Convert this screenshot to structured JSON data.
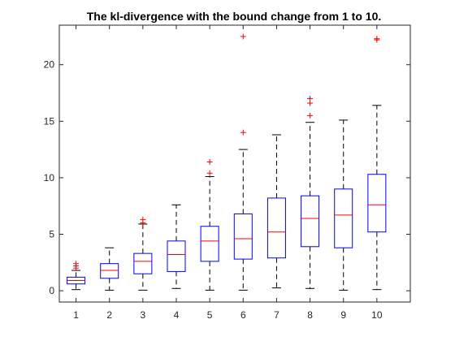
{
  "chart_data": {
    "type": "boxplot",
    "title": "The kl-divergence with the bound change from 1 to 10.",
    "xlabel": "",
    "ylabel": "",
    "categories": [
      "1",
      "2",
      "3",
      "4",
      "5",
      "6",
      "7",
      "8",
      "9",
      "10"
    ],
    "ylim": [
      -1,
      23.5
    ],
    "yticks": [
      0,
      5,
      10,
      15,
      20
    ],
    "ytick_labels": [
      "0",
      "5",
      "10",
      "15",
      "20"
    ],
    "grid": false,
    "colors": {
      "box": "#0000ff",
      "median": "#ff0000",
      "whisker": "#000000",
      "outlier": "#ff0000",
      "axes": "#262626"
    },
    "boxes": [
      {
        "category": "1",
        "min": 0.1,
        "q1": 0.6,
        "median": 0.9,
        "q3": 1.2,
        "max": 1.8,
        "outliers": [
          2.0,
          2.2,
          2.4
        ]
      },
      {
        "category": "2",
        "min": 0.05,
        "q1": 1.1,
        "median": 1.8,
        "q3": 2.4,
        "max": 3.8,
        "outliers": []
      },
      {
        "category": "3",
        "min": 0.05,
        "q1": 1.5,
        "median": 2.6,
        "q3": 3.3,
        "max": 5.9,
        "outliers": [
          6.0,
          6.3
        ]
      },
      {
        "category": "4",
        "min": 0.2,
        "q1": 1.7,
        "median": 3.2,
        "q3": 4.4,
        "max": 7.6,
        "outliers": []
      },
      {
        "category": "5",
        "min": 0.05,
        "q1": 2.6,
        "median": 4.4,
        "q3": 5.7,
        "max": 10.1,
        "outliers": [
          10.4,
          11.4
        ]
      },
      {
        "category": "6",
        "min": 0.05,
        "q1": 2.8,
        "median": 4.6,
        "q3": 6.8,
        "max": 12.5,
        "outliers": [
          14.0,
          22.5
        ]
      },
      {
        "category": "7",
        "min": 0.25,
        "q1": 2.9,
        "median": 5.2,
        "q3": 8.2,
        "max": 13.8,
        "outliers": []
      },
      {
        "category": "8",
        "min": 0.2,
        "q1": 3.9,
        "median": 6.4,
        "q3": 8.4,
        "max": 14.9,
        "outliers": [
          15.5,
          16.6,
          17.0
        ]
      },
      {
        "category": "9",
        "min": 0.05,
        "q1": 3.8,
        "median": 6.7,
        "q3": 9.0,
        "max": 15.1,
        "outliers": []
      },
      {
        "category": "10",
        "min": 0.1,
        "q1": 5.2,
        "median": 7.6,
        "q3": 10.3,
        "max": 16.4,
        "outliers": [
          22.2,
          22.3
        ]
      }
    ]
  }
}
